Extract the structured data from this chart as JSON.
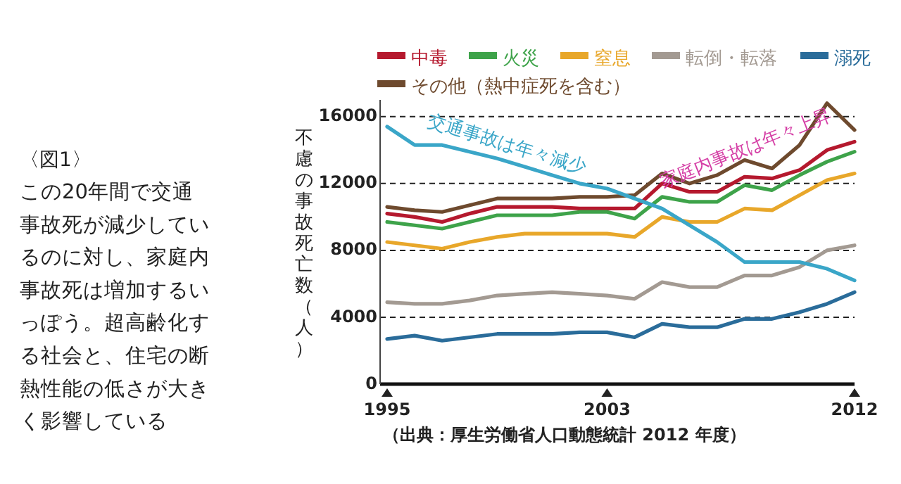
{
  "chart_data": {
    "type": "line",
    "title": "〈図1〉",
    "ylabel": "不慮の事故死亡数（人）",
    "x": [
      1995,
      1996,
      1997,
      1998,
      1999,
      2000,
      2001,
      2002,
      2003,
      2004,
      2005,
      2006,
      2007,
      2008,
      2009,
      2010,
      2011,
      2012
    ],
    "xlim": [
      1995,
      2012
    ],
    "xticks": [
      1995,
      2003,
      2012
    ],
    "ylim": [
      0,
      17000
    ],
    "yticks": [
      0,
      4000,
      8000,
      12000,
      16000
    ],
    "grid": "y",
    "legend": "top",
    "marker": "none",
    "line_style": "solid",
    "series": [
      {
        "name": "中毒",
        "color": "#b5192e",
        "values": [
          10200,
          10000,
          9700,
          10200,
          10600,
          10600,
          10600,
          10500,
          10500,
          10500,
          12000,
          11500,
          11500,
          12400,
          12300,
          12800,
          14000,
          14500
        ]
      },
      {
        "name": "火災",
        "color": "#3ea34a",
        "values": [
          9700,
          9500,
          9300,
          9700,
          10100,
          10100,
          10100,
          10300,
          10300,
          9900,
          11200,
          10900,
          10900,
          11900,
          11600,
          12500,
          13300,
          13900
        ]
      },
      {
        "name": "窒息",
        "color": "#e8a72a",
        "values": [
          8500,
          8300,
          8100,
          8500,
          8800,
          9000,
          9000,
          9000,
          9000,
          8800,
          10000,
          9700,
          9700,
          10500,
          10400,
          11300,
          12200,
          12600
        ]
      },
      {
        "name": "転倒・転落",
        "color": "#a39a92",
        "values": [
          4900,
          4800,
          4800,
          5000,
          5300,
          5400,
          5500,
          5400,
          5300,
          5100,
          6100,
          5800,
          5800,
          6500,
          6500,
          7000,
          8000,
          8300
        ]
      },
      {
        "name": "溺死",
        "color": "#2a6c9a",
        "values": [
          2700,
          2900,
          2600,
          2800,
          3000,
          3000,
          3000,
          3100,
          3100,
          2800,
          3600,
          3400,
          3400,
          3900,
          3900,
          4300,
          4800,
          5500
        ]
      },
      {
        "name": "その他（熱中症死を含む）",
        "color": "#6e4a2e",
        "values": [
          10600,
          10400,
          10300,
          10700,
          11100,
          11100,
          11100,
          11200,
          11200,
          11300,
          12600,
          12000,
          12500,
          13400,
          12900,
          14300,
          16800,
          15200
        ]
      },
      {
        "color": "#3aa6c8",
        "values": [
          15400,
          14300,
          14300,
          13900,
          13500,
          13000,
          12500,
          12000,
          11700,
          11100,
          10500,
          9500,
          8500,
          7300,
          7300,
          7300,
          6900,
          6200
        ]
      }
    ],
    "annotations": [
      "交通事故は年々減少",
      "家庭内事故は年々上昇",
      "この20年間で交通事故死が減少しているのに対し、家庭内事故死は増加するいっぽう。超高齢化する社会と、住宅の断熱性能の低さが大きく影響している",
      "（出典：厚生労働省人口動態統計 2012 年度）"
    ]
  }
}
